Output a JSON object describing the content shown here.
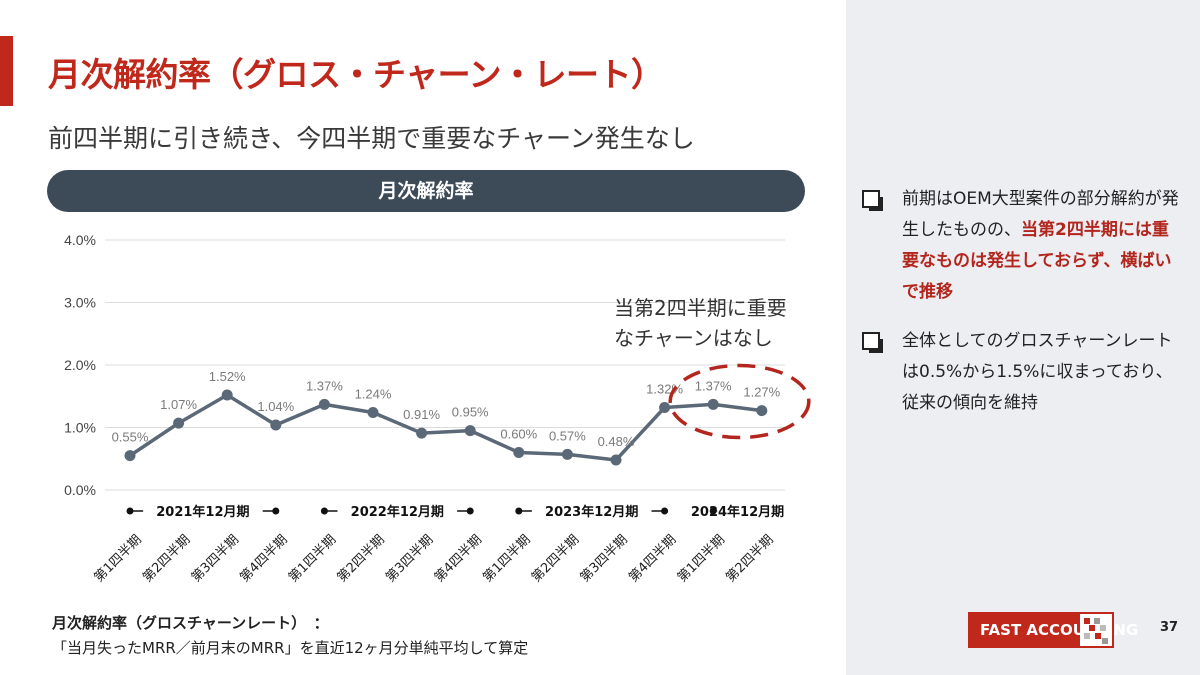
{
  "header": {
    "title": "月次解約率（グロス・チャーン・レート）",
    "subtitle": "前四半期に引き続き、今四半期で重要なチャーン発生なし"
  },
  "chart_header": "月次解約率",
  "chart_data": {
    "type": "line",
    "title": "月次解約率",
    "categories": [
      "第1四半期",
      "第2四半期",
      "第3四半期",
      "第4四半期",
      "第1四半期",
      "第2四半期",
      "第3四半期",
      "第4四半期",
      "第1四半期",
      "第2四半期",
      "第3四半期",
      "第4四半期",
      "第1四半期",
      "第2四半期"
    ],
    "values": [
      0.55,
      1.07,
      1.52,
      1.04,
      1.37,
      1.24,
      0.91,
      0.95,
      0.6,
      0.57,
      0.48,
      1.32,
      1.37,
      1.27
    ],
    "data_labels": [
      "0.55%",
      "1.07%",
      "1.52%",
      "1.04%",
      "1.37%",
      "1.24%",
      "0.91%",
      "0.95%",
      "0.60%",
      "0.57%",
      "0.48%",
      "1.32%",
      "1.37%",
      "1.27%"
    ],
    "ylim": [
      0,
      4
    ],
    "yticks": [
      "0.0%",
      "1.0%",
      "2.0%",
      "3.0%",
      "4.0%"
    ],
    "grid": true,
    "period_groups": [
      {
        "label": "2021年12月期",
        "start": 0,
        "end": 3
      },
      {
        "label": "2022年12月期",
        "start": 4,
        "end": 7
      },
      {
        "label": "2023年12月期",
        "start": 8,
        "end": 11
      },
      {
        "label": "2024年12月期",
        "start": 12,
        "end": 13
      }
    ],
    "annotation": "当第2四半期に重要なチャーンはなし",
    "annotation_lines": [
      "当第2四半期に重要",
      "なチャーンはなし"
    ],
    "highlight": [
      12,
      13
    ],
    "colors": {
      "line": "#5b6877",
      "label": "#7a7a7a",
      "highlight": "#b3261e"
    }
  },
  "bullets": [
    {
      "text_before": "前期はOEM大型案件の部分解約が発生したものの、",
      "highlight": "当第2四半期には重要なものは発生しておらず、横ばいで推移",
      "text_after": ""
    },
    {
      "text_before": "全体としてのグロスチャーンレートは0.5%から1.5%に収まっており、従来の傾向を維持",
      "highlight": "",
      "text_after": ""
    }
  ],
  "footnote": {
    "title": "月次解約率（グロスチャーンレート）　：",
    "body": "「当月失ったMRR／前月末のMRR」を直近12ヶ月分単純平均して算定"
  },
  "logo": {
    "text": "FAST ACCOUNTING"
  },
  "page_number": "37",
  "colors": {
    "accent": "#c0281c",
    "chart_header_bg": "#3d4a58",
    "side_panel": "#eceef1"
  }
}
